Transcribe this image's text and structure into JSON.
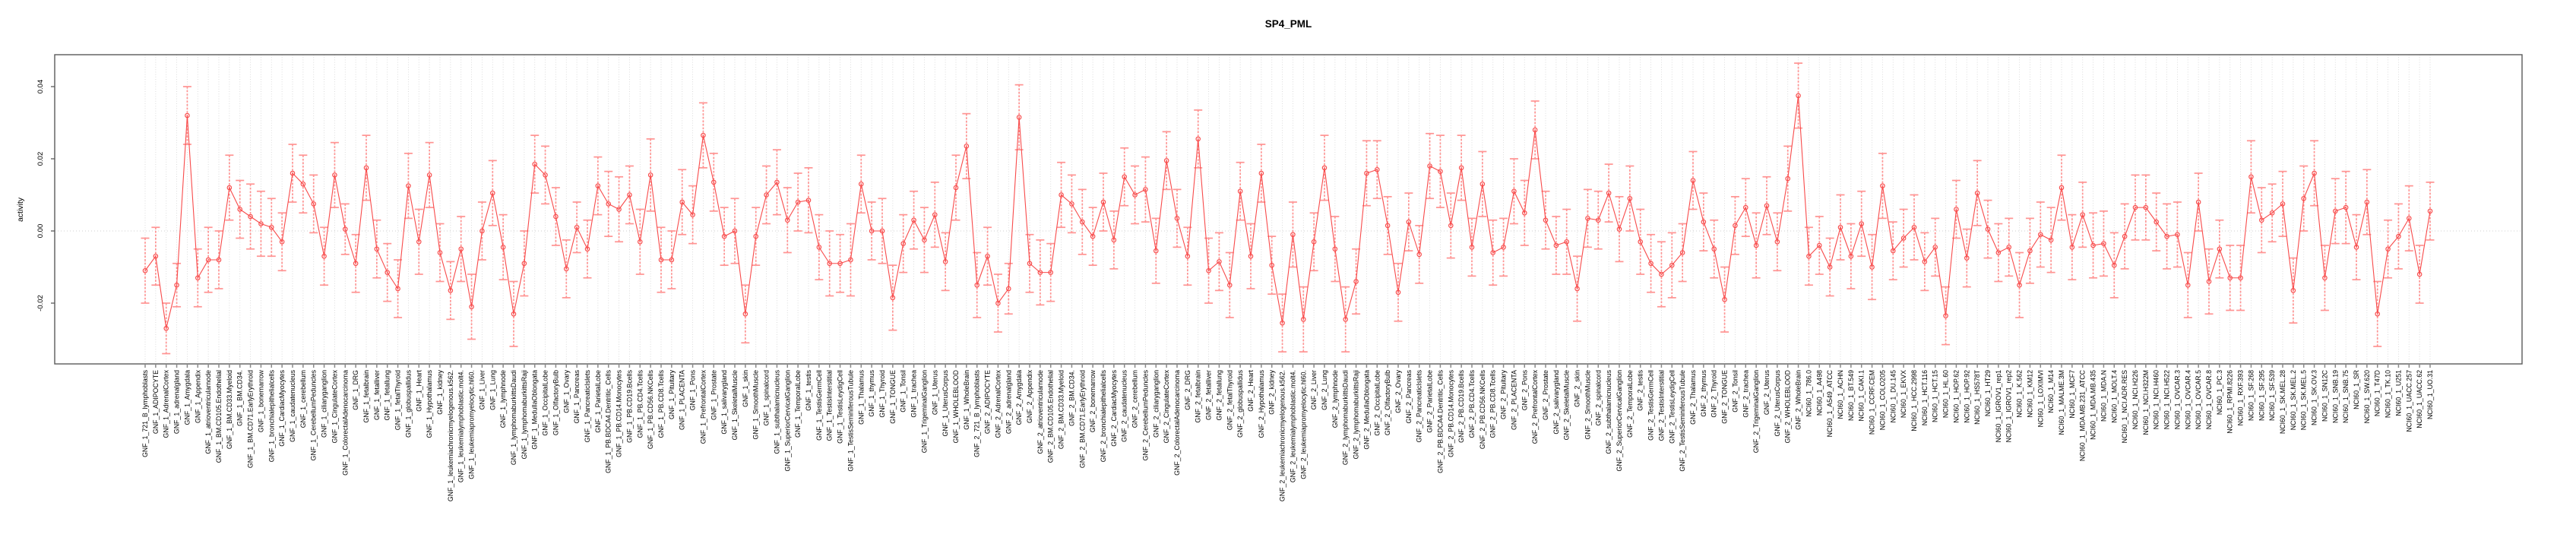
{
  "title": "SP4_PML",
  "colors": {
    "line": "#f84b4b",
    "point": "#f84b4b",
    "error_bar": "#ff9392",
    "gridline": "#d8d8d8",
    "zero_line": "#cfcfcf",
    "box": "#5a5a5a",
    "tick": "#8a8a8a",
    "text": "#000000",
    "background": "#ffffff"
  },
  "chart_data": {
    "type": "line",
    "title": "SP4_PML",
    "xlabel": "",
    "ylabel": "activity",
    "ylim": [
      -0.0368,
      0.0488
    ],
    "yticks": [
      0.04,
      0.02,
      0.0,
      -0.02
    ],
    "ytick_labels": [
      "0.04",
      "0.02",
      "0.00",
      "-0.02"
    ],
    "zero_line": 0.0,
    "grid": "vertical-dotted-per-category",
    "legend": null,
    "point_style": "open-circle",
    "error_bars": true,
    "groups": [
      {
        "prefix": "GNF_1_",
        "samples": [
          "721_B_lymphoblasts",
          "ADIPOCYTE",
          "AdrenalCortex",
          "adrenalgland",
          "Amygdala",
          "Appendix",
          "atrioventricularnode",
          "BM.CD105.Endothelial",
          "BM.CD33.Myeloid",
          "BM.CD34.",
          "BM.CD71.EarlyErythroid",
          "bonemarrow",
          "bronchialepithelialcells",
          "CardiacMyocytes",
          "caudatenucleus",
          "cerebellum",
          "CerebellumPeduncles",
          "ciliaryganglion",
          "CingulateCortex",
          "ColorectalAdenocarcinoma",
          "DRG",
          "fetalbrain",
          "fetalliver",
          "fetallung",
          "fetalThyroid",
          "globuspallidus",
          "Heart",
          "Hypothalamus",
          "kidney",
          "leukemiachronicmyelogenous.k562.",
          "leukemialymphoblastic.molt4.",
          "leukemiapromyelocytic.hl60.",
          "Liver",
          "Lung",
          "lymphnode",
          "lymphomaburkittsDaudi",
          "lymphomaburkittsRaji",
          "MedullaOblongata",
          "OccipitalLobe",
          "OlfactoryBulb",
          "Ovary",
          "Pancreas",
          "PancreaticIslets",
          "ParietalLobe",
          "PB.BDCA4.Dentritic_Cells",
          "PB.CD14.Monocytes",
          "PB.CD19.Bcells",
          "PB.CD4.Tcells",
          "PB.CD56.NKCells",
          "PB.CD8.Tcells",
          "Pituitary",
          "PLACENTA",
          "Pons",
          "PrefrontalCortex",
          "Prostate",
          "salivarygland",
          "SkeletalMuscle",
          "skin",
          "SmoothMuscle",
          "spinalcord",
          "subthalamicnucleus",
          "SuperiorCervicalGanglion",
          "TemporalLobe",
          "testis",
          "TestisGermCell",
          "TestisInterstitial",
          "TestisLeydigCell",
          "TestisSeminiferousTubule",
          "Thalamus",
          "thymus",
          "Thyroid",
          "TONGUE",
          "Tonsil",
          "trachea",
          "TrigeminalGanglion",
          "Uterus",
          "UterusCorpus",
          "WHOLEBLOOD",
          "WholeBrain"
        ],
        "values": [
          -0.011,
          -0.007,
          -0.027,
          -0.015,
          0.032,
          -0.013,
          -0.008,
          -0.008,
          0.012,
          0.006,
          0.004,
          0.002,
          0.001,
          -0.003,
          0.016,
          0.013,
          0.0075,
          -0.007,
          0.0155,
          0.0005,
          -0.009,
          0.0175,
          -0.005,
          -0.0115,
          -0.016,
          0.0125,
          -0.003,
          0.0155,
          -0.006,
          -0.0165,
          -0.005,
          -0.021,
          0.0,
          0.0105,
          -0.0045,
          -0.023,
          -0.009,
          0.0185,
          0.0155,
          0.004,
          -0.0105,
          0.001,
          -0.005,
          0.0125,
          0.0075,
          0.006,
          0.01,
          -0.003,
          0.0155,
          -0.008,
          -0.008,
          0.008,
          0.0045,
          0.0265,
          0.0135,
          -0.0015,
          0.0,
          -0.023,
          -0.0015,
          0.01,
          0.0135,
          0.003,
          0.008,
          0.0085,
          -0.0045,
          -0.009,
          -0.009,
          -0.008,
          0.013,
          0.0,
          0.0,
          -0.0185,
          -0.0035,
          0.003,
          -0.0025,
          0.0045,
          -0.0085,
          0.012,
          0.0235
        ],
        "errors": [
          0.009,
          0.008,
          0.007,
          0.006,
          0.008,
          0.008,
          0.009,
          0.008,
          0.009,
          0.008,
          0.009,
          0.009,
          0.008,
          0.008,
          0.008,
          0.008,
          0.008,
          0.008,
          0.009,
          0.007,
          0.008,
          0.009,
          0.008,
          0.008,
          0.008,
          0.009,
          0.009,
          0.009,
          0.008,
          0.008,
          0.009,
          0.009,
          0.008,
          0.009,
          0.009,
          0.009,
          0.009,
          0.008,
          0.008,
          0.008,
          0.008,
          0.007,
          0.008,
          0.008,
          0.009,
          0.009,
          0.008,
          0.009,
          0.01,
          0.009,
          0.008,
          0.009,
          0.008,
          0.009,
          0.008,
          0.008,
          0.009,
          0.008,
          0.008,
          0.008,
          0.009,
          0.009,
          0.008,
          0.009,
          0.009,
          0.009,
          0.008,
          0.01,
          0.008,
          0.008,
          0.009,
          0.009,
          0.008,
          0.008,
          0.009,
          0.009,
          0.008,
          0.009,
          0.009
        ]
      },
      {
        "prefix": "GNF_2_",
        "samples": [
          "721_B_lymphoblasts",
          "ADIPOCYTE",
          "AdrenalCortex",
          "adrenalgland",
          "Amygdala",
          "Appendix",
          "atrioventricularnode",
          "BM.CD105.Endothelial",
          "BM.CD33.Myeloid",
          "BM.CD34.",
          "BM.CD71.EarlyErythroid",
          "bonemarrow",
          "bronchialepithelialcells",
          "CardiacMyocytes",
          "caudatenucleus",
          "cerebellum",
          "CerebellumPeduncles",
          "ciliaryganglion",
          "CingulateCortex",
          "ColorectalAdenocarcinoma",
          "DRG",
          "fetalbrain",
          "fetalliver",
          "fetallung",
          "fetalThyroid",
          "globuspallidus",
          "Heart",
          "Hypothalamus",
          "kidney",
          "leukemiachronicmyelogenous.k562.",
          "leukemialymphoblastic.molt4.",
          "leukemiapromyelocytic.hl60.",
          "Liver",
          "Lung",
          "lymphnode",
          "lymphomaburkittsDaudi",
          "lymphomaburkittsRaji",
          "MedullaOblongata",
          "OccipitalLobe",
          "OlfactoryBulb",
          "Ovary",
          "Pancreas",
          "PancreaticIslets",
          "ParietalLobe",
          "PB.BDCA4.Dentritic_Cells",
          "PB.CD14.Monocytes",
          "PB.CD19.Bcells",
          "PB.CD4.Tcells",
          "PB.CD56.NKCells",
          "PB.CD8.Tcells",
          "Pituitary",
          "PLACENTA",
          "Pons",
          "PrefrontalCortex",
          "Prostate",
          "salivarygland",
          "SkeletalMuscle",
          "skin",
          "SmoothMuscle",
          "spinalcord",
          "subthalamicnucleus",
          "SuperiorCervicalGanglion",
          "TemporalLobe",
          "testis",
          "TestisGermCell",
          "TestisInterstitial",
          "TestisLeydigCell",
          "TestisSeminiferousTubule",
          "Thalamus",
          "thymus",
          "Thyroid",
          "TONGUE",
          "Tonsil",
          "trachea",
          "TrigeminalGanglion",
          "Uterus",
          "UterusCorpus",
          "WHOLEBLOOD",
          "WholeBrain"
        ],
        "values": [
          -0.015,
          -0.007,
          -0.02,
          -0.016,
          0.0315,
          -0.009,
          -0.0115,
          -0.0115,
          0.01,
          0.0075,
          0.0025,
          -0.0015,
          0.008,
          -0.0025,
          0.015,
          0.01,
          0.0115,
          -0.0055,
          0.0195,
          0.0035,
          -0.007,
          0.0255,
          -0.011,
          -0.0085,
          -0.015,
          0.011,
          -0.007,
          0.016,
          -0.0095,
          -0.0255,
          -0.001,
          -0.0245,
          -0.003,
          0.0175,
          -0.005,
          -0.0245,
          -0.014,
          0.016,
          0.017,
          0.0015,
          -0.017,
          0.0025,
          -0.0065,
          0.018,
          0.0165,
          0.0015,
          0.0175,
          -0.0045,
          0.013,
          -0.006,
          -0.0045,
          0.011,
          0.005,
          0.028,
          0.003,
          -0.004,
          -0.003,
          -0.016,
          0.0035,
          0.003,
          0.0105,
          0.0005,
          0.009,
          -0.003,
          -0.009,
          -0.012,
          -0.0095,
          -0.006,
          0.014,
          0.0025,
          -0.005,
          -0.019,
          0.0015,
          0.0065,
          -0.004,
          0.007,
          -0.003,
          0.0145,
          0.0375
        ],
        "errors": [
          0.009,
          0.008,
          0.008,
          0.007,
          0.009,
          0.008,
          0.009,
          0.008,
          0.009,
          0.008,
          0.009,
          0.008,
          0.008,
          0.008,
          0.008,
          0.008,
          0.009,
          0.009,
          0.008,
          0.008,
          0.008,
          0.008,
          0.009,
          0.008,
          0.009,
          0.008,
          0.009,
          0.008,
          0.008,
          0.008,
          0.009,
          0.009,
          0.008,
          0.009,
          0.009,
          0.009,
          0.009,
          0.009,
          0.008,
          0.008,
          0.008,
          0.008,
          0.008,
          0.009,
          0.01,
          0.009,
          0.009,
          0.008,
          0.009,
          0.009,
          0.008,
          0.009,
          0.009,
          0.008,
          0.008,
          0.008,
          0.009,
          0.009,
          0.008,
          0.008,
          0.008,
          0.009,
          0.009,
          0.009,
          0.008,
          0.009,
          0.009,
          0.008,
          0.008,
          0.008,
          0.008,
          0.009,
          0.008,
          0.008,
          0.009,
          0.008,
          0.008,
          0.009,
          0.009
        ]
      },
      {
        "prefix": "NCI60_1_",
        "samples": [
          "786.0",
          "A498",
          "A549_ATCC",
          "ACHN",
          "BT.549",
          "CAKI.1",
          "CCRF.CEM",
          "COLO205",
          "DU.145",
          "EKVX",
          "HCC.2998",
          "HCT.116",
          "HCT.15",
          "HL.60",
          "HOP.62",
          "HOP.92",
          "HS578T",
          "HT29",
          "IGROV1_rep1",
          "IGROV1_rep2",
          "K.562",
          "KM12",
          "LOXIMVI",
          "M14",
          "MALME.3M",
          "MCF7",
          "MDA.MB.231_ATCC",
          "MDA.MB.435",
          "MDA.N",
          "MOLT.4",
          "NCI.ADR.RES",
          "NCI.H226",
          "NCI.H322M",
          "NCI.H460",
          "NCI.H522",
          "OVCAR.3",
          "OVCAR.4",
          "OVCAR.5",
          "OVCAR.8",
          "PC.3",
          "RPMI.8226",
          "RXF.393",
          "SF.268",
          "SF.295",
          "SF.539",
          "SK.MEL.28",
          "SK.MEL.2",
          "SK.MEL.5",
          "SK.OV.3",
          "SN12C",
          "SNB.19",
          "SNB.75",
          "SR",
          "SW.620",
          "T47D",
          "TK.10",
          "U251",
          "UACC.257",
          "UACC.62",
          "UO.31"
        ],
        "values": [
          -0.007,
          -0.004,
          -0.01,
          0.001,
          -0.007,
          0.002,
          -0.01,
          0.0125,
          -0.0055,
          -0.002,
          0.001,
          -0.0085,
          -0.0045,
          -0.0235,
          0.006,
          -0.0075,
          0.0105,
          0.0005,
          -0.006,
          -0.0045,
          -0.015,
          -0.0055,
          -0.001,
          -0.0025,
          0.012,
          -0.0045,
          0.0045,
          -0.004,
          -0.0035,
          -0.0095,
          -0.0015,
          0.0065,
          0.0065,
          0.0025,
          -0.0015,
          -0.001,
          -0.015,
          0.008,
          -0.014,
          -0.005,
          -0.013,
          -0.013,
          0.015,
          0.003,
          0.005,
          0.0075,
          -0.0165,
          0.009,
          0.016,
          -0.013,
          0.0055,
          0.0065,
          -0.0045,
          0.008,
          -0.023,
          -0.005,
          -0.0015,
          0.0035,
          -0.012,
          0.0055
        ],
        "errors": [
          0.008,
          0.008,
          0.008,
          0.009,
          0.009,
          0.009,
          0.009,
          0.009,
          0.008,
          0.008,
          0.009,
          0.008,
          0.008,
          0.008,
          0.008,
          0.008,
          0.009,
          0.008,
          0.008,
          0.008,
          0.009,
          0.009,
          0.009,
          0.009,
          0.009,
          0.009,
          0.009,
          0.009,
          0.009,
          0.009,
          0.009,
          0.009,
          0.009,
          0.008,
          0.009,
          0.009,
          0.009,
          0.008,
          0.009,
          0.008,
          0.009,
          0.009,
          0.01,
          0.009,
          0.008,
          0.009,
          0.009,
          0.009,
          0.009,
          0.009,
          0.009,
          0.01,
          0.009,
          0.009,
          0.009,
          0.008,
          0.009,
          0.009,
          0.008,
          0.008
        ]
      }
    ]
  }
}
